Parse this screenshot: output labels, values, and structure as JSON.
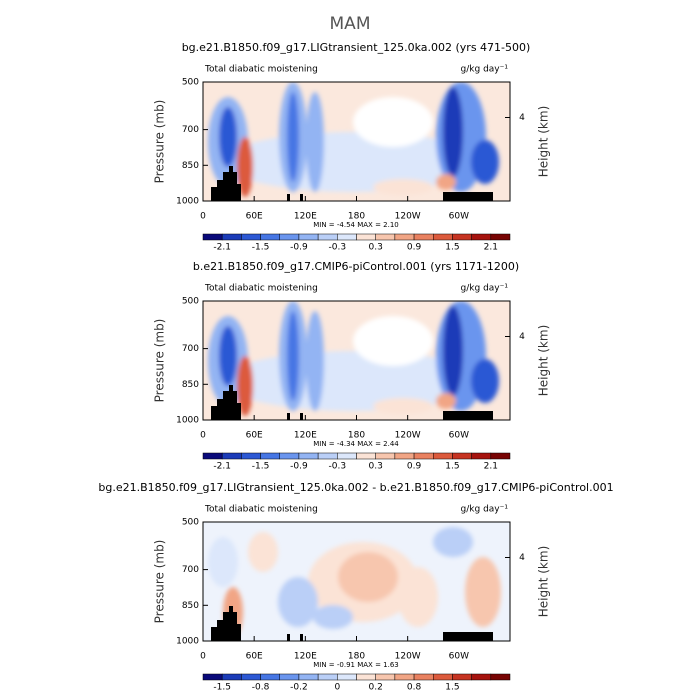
{
  "title": "MAM",
  "chart_data": [
    {
      "type": "contour",
      "title": "bg.e21.B1850.f09_g17.LIGtransient_125.0ka.002 (yrs 471-500)",
      "left_label": "Total diabatic moistening",
      "units": "g/kg day⁻¹",
      "ylabel": "Pressure (mb)",
      "y2label": "Height (km)",
      "xlim": [
        0,
        360
      ],
      "xticks": [
        0,
        {
          "value": 60,
          "label": "60E"
        },
        {
          "value": 120,
          "label": "120E"
        },
        180,
        {
          "value": 240,
          "label": "120W"
        },
        {
          "value": 300,
          "label": "60W"
        }
      ],
      "ylim": [
        1000,
        500
      ],
      "yticks": [
        500,
        700,
        850,
        1000
      ],
      "y2lim": [
        0,
        5.7
      ],
      "y2ticks": [
        4
      ],
      "stats": "MIN =   -4.54   MAX =    2.10",
      "colorbar": {
        "labels": [
          -2.1,
          -1.5,
          -0.9,
          -0.3,
          0.3,
          0.9,
          1.5,
          2.1
        ],
        "colors": [
          "#0a0a7a",
          "#1b3bb8",
          "#2c58d4",
          "#4676e4",
          "#6a95ee",
          "#93b4f3",
          "#bacff7",
          "#dce7fb",
          "#fbe3d6",
          "#f7c6ae",
          "#f1a585",
          "#e98160",
          "#dc5a3c",
          "#c63321",
          "#a6130e",
          "#780403"
        ]
      }
    },
    {
      "type": "contour",
      "title": "b.e21.B1850.f09_g17.CMIP6-piControl.001 (yrs 1171-1200)",
      "left_label": "Total diabatic moistening",
      "units": "g/kg day⁻¹",
      "ylabel": "Pressure (mb)",
      "y2label": "Height (km)",
      "xlim": [
        0,
        360
      ],
      "xticks": [
        0,
        {
          "value": 60,
          "label": "60E"
        },
        {
          "value": 120,
          "label": "120E"
        },
        180,
        {
          "value": 240,
          "label": "120W"
        },
        {
          "value": 300,
          "label": "60W"
        }
      ],
      "ylim": [
        1000,
        500
      ],
      "yticks": [
        500,
        700,
        850,
        1000
      ],
      "y2lim": [
        0,
        5.7
      ],
      "y2ticks": [
        4
      ],
      "stats": "MIN =   -4.34   MAX =    2.44",
      "colorbar": {
        "labels": [
          -2.1,
          -1.5,
          -0.9,
          -0.3,
          0.3,
          0.9,
          1.5,
          2.1
        ],
        "colors": [
          "#0a0a7a",
          "#1b3bb8",
          "#2c58d4",
          "#4676e4",
          "#6a95ee",
          "#93b4f3",
          "#bacff7",
          "#dce7fb",
          "#fbe3d6",
          "#f7c6ae",
          "#f1a585",
          "#e98160",
          "#dc5a3c",
          "#c63321",
          "#a6130e",
          "#780403"
        ]
      }
    },
    {
      "type": "contour",
      "title": "bg.e21.B1850.f09_g17.LIGtransient_125.0ka.002 - b.e21.B1850.f09_g17.CMIP6-piControl.001",
      "left_label": "Total diabatic moistening",
      "units": "g/kg day⁻¹",
      "ylabel": "Pressure (mb)",
      "y2label": "Height (km)",
      "xlim": [
        0,
        360
      ],
      "xticks": [
        0,
        {
          "value": 60,
          "label": "60E"
        },
        {
          "value": 120,
          "label": "120E"
        },
        180,
        {
          "value": 240,
          "label": "120W"
        },
        {
          "value": 300,
          "label": "60W"
        }
      ],
      "ylim": [
        1000,
        500
      ],
      "yticks": [
        500,
        700,
        850,
        1000
      ],
      "y2lim": [
        0,
        5.7
      ],
      "y2ticks": [
        4
      ],
      "stats": "MIN =   -0.91   MAX =    1.63",
      "colorbar": {
        "labels": [
          -1.5,
          -0.8,
          -0.2,
          0,
          0.2,
          0.8,
          1.5
        ],
        "colors": [
          "#0a0a7a",
          "#1b3bb8",
          "#2c58d4",
          "#4676e4",
          "#6a95ee",
          "#93b4f3",
          "#bacff7",
          "#dce7fb",
          "#fbe3d6",
          "#f7c6ae",
          "#f1a585",
          "#e98160",
          "#dc5a3c",
          "#c63321",
          "#a6130e",
          "#780403"
        ]
      }
    }
  ]
}
